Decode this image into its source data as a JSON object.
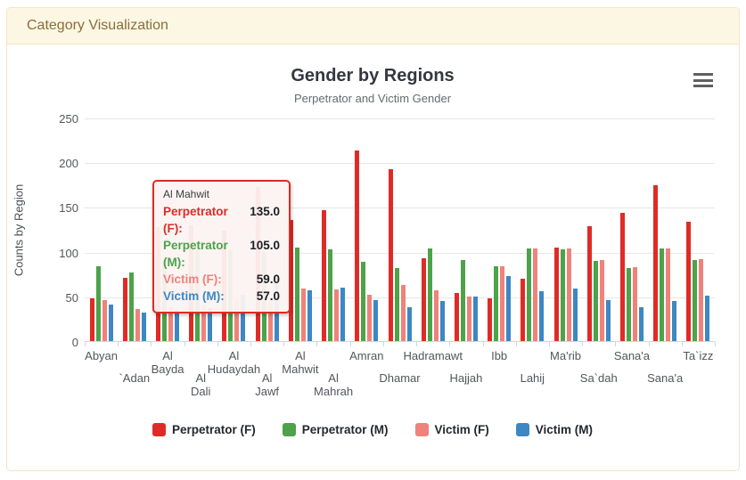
{
  "panel": {
    "heading": "Category Visualization"
  },
  "icons": {
    "context_menu": "hamburger-menu"
  },
  "chart_data": {
    "type": "bar",
    "title": "Gender by Regions",
    "subtitle": "Perpetrator and Victim Gender",
    "xlabel": "",
    "ylabel": "Counts by Region",
    "ylim": [
      0,
      250
    ],
    "yticks": [
      0,
      50,
      100,
      150,
      200,
      250
    ],
    "grid": true,
    "legend_position": "bottom",
    "axis_line_color": "#ccd6eb",
    "gridline_color": "#e6e6e6",
    "categories": [
      "Abyan",
      "`Adan",
      "Al Bayda",
      "Al Dali",
      "Al Hudaydah",
      "Al Jawf",
      "Al Mahwit",
      "Al Mahrah",
      "Amran",
      "Dhamar",
      "Hadramawt",
      "Hajjah",
      "Ibb",
      "Lahij",
      "Ma'rib",
      "Sa`dah",
      "Sana'a",
      "Sana'a",
      "Ta`izz"
    ],
    "series": [
      {
        "name": "Perpetrator (F)",
        "color": "#df2b27",
        "values": [
          48,
          71,
          127,
          129,
          124,
          172,
          135,
          146,
          213,
          192,
          93,
          54,
          48,
          70,
          105,
          128,
          143,
          174,
          133
        ]
      },
      {
        "name": "Perpetrator (M)",
        "color": "#4da24a",
        "values": [
          84,
          77,
          91,
          102,
          102,
          100,
          105,
          103,
          89,
          82,
          104,
          91,
          84,
          104,
          103,
          90,
          82,
          104,
          91
        ]
      },
      {
        "name": "Victim (F)",
        "color": "#ef827a",
        "values": [
          46,
          36,
          38,
          40,
          47,
          47,
          59,
          58,
          52,
          63,
          57,
          50,
          84,
          104,
          104,
          91,
          83,
          104,
          92
        ]
      },
      {
        "name": "Victim (M)",
        "color": "#3d87c3",
        "values": [
          41,
          32,
          35,
          37,
          52,
          73,
          57,
          60,
          46,
          38,
          45,
          50,
          73,
          56,
          59,
          46,
          38,
          45,
          51
        ]
      }
    ],
    "tooltip": {
      "category": "Al Mahwit",
      "rows": [
        {
          "label": "Perpetrator (F):",
          "value": "135.0",
          "series": 0
        },
        {
          "label": "Perpetrator (M):",
          "value": "105.0",
          "series": 1
        },
        {
          "label": "Victim (F):",
          "value": "59.0",
          "series": 2
        },
        {
          "label": "Victim (M):",
          "value": "57.0",
          "series": 3
        }
      ]
    }
  }
}
